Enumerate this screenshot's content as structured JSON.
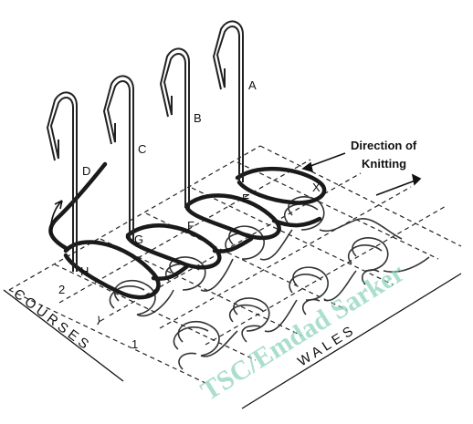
{
  "labels": {
    "needle_a": "A",
    "needle_b": "B",
    "needle_c": "C",
    "needle_d": "D",
    "loop_e": "E",
    "loop_f": "F",
    "loop_g": "G",
    "loop_h": "H",
    "mark_x": "X",
    "mark_y": "Y",
    "course_1": "1",
    "course_2": "2"
  },
  "direction": {
    "line1": "Direction of",
    "line2": "Knitting"
  },
  "axes": {
    "courses": "COURSES",
    "wales": "WALES"
  },
  "watermark": "TSC/Emdad Sarker",
  "colors": {
    "ink": "#111111",
    "yarn_new": "#1a1a1a",
    "watermark": "#8fd3bd"
  }
}
